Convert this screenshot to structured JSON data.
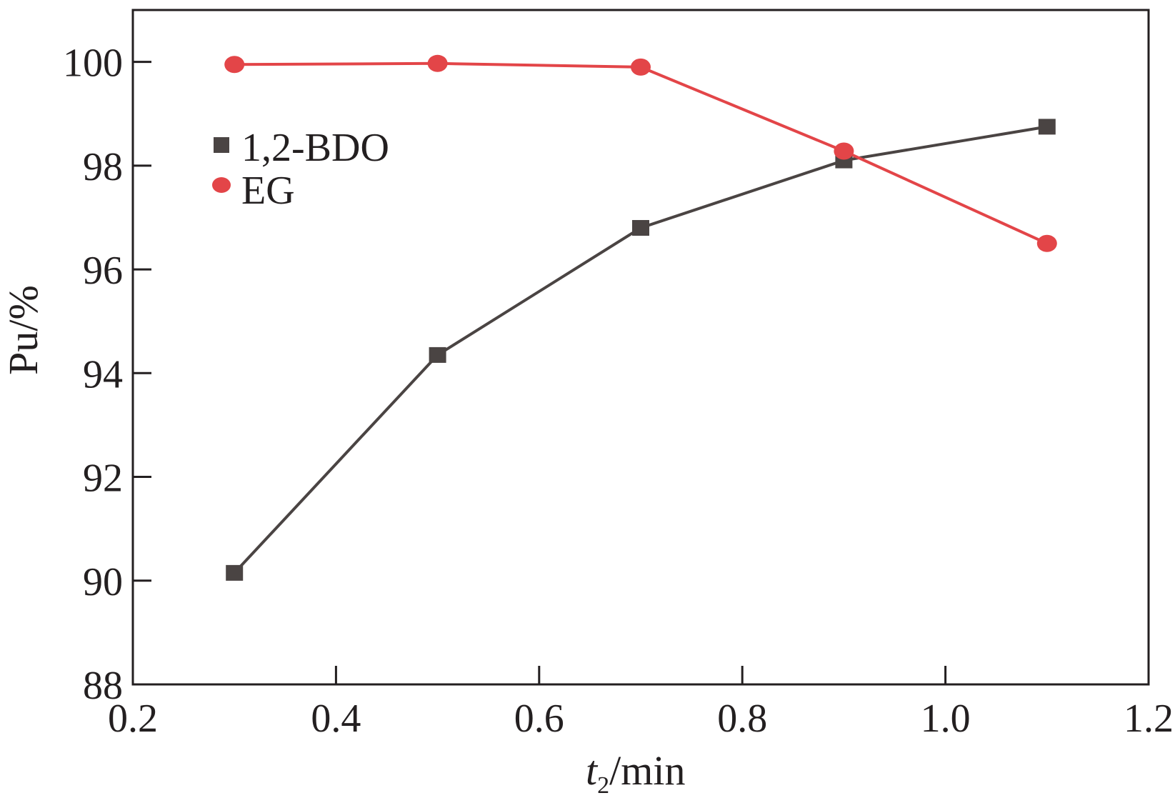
{
  "chart_data": {
    "type": "line",
    "x_label_main": "t",
    "x_label_sub": "2",
    "x_label_unit": "/min",
    "ylabel": "Pu/%",
    "xlim": [
      0.2,
      1.2
    ],
    "ylim": [
      88,
      101
    ],
    "x_ticks": [
      {
        "value": 0.2,
        "label": "0.2"
      },
      {
        "value": 0.4,
        "label": "0.4"
      },
      {
        "value": 0.6,
        "label": "0.6"
      },
      {
        "value": 0.8,
        "label": "0.8"
      },
      {
        "value": 1.0,
        "label": "1.0"
      },
      {
        "value": 1.2,
        "label": "1.2"
      }
    ],
    "y_ticks": [
      {
        "value": 88,
        "label": "88"
      },
      {
        "value": 90,
        "label": "90"
      },
      {
        "value": 92,
        "label": "92"
      },
      {
        "value": 94,
        "label": "94"
      },
      {
        "value": 96,
        "label": "96"
      },
      {
        "value": 98,
        "label": "98"
      },
      {
        "value": 100,
        "label": "100"
      }
    ],
    "grid": false,
    "legend_position": "top-left",
    "series": [
      {
        "name": "1,2-BDO",
        "marker": "square",
        "color": "#4a4443",
        "x": [
          0.3,
          0.5,
          0.7,
          0.9,
          1.1
        ],
        "y": [
          90.15,
          94.35,
          96.8,
          98.1,
          98.75
        ]
      },
      {
        "name": "EG",
        "marker": "circle",
        "color": "#e34548",
        "x": [
          0.3,
          0.5,
          0.7,
          0.9,
          1.1
        ],
        "y": [
          99.95,
          99.97,
          99.9,
          98.28,
          96.5
        ]
      }
    ]
  }
}
